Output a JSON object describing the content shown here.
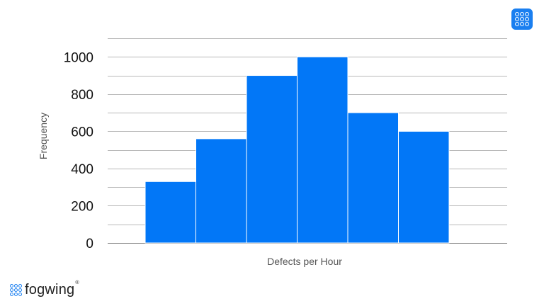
{
  "chart_data": {
    "type": "bar",
    "title": "",
    "xlabel": "Defects per Hour",
    "ylabel": "Frequency",
    "categories": [
      "",
      "",
      "",
      "",
      "",
      ""
    ],
    "values": [
      330,
      560,
      900,
      1000,
      700,
      600
    ],
    "ylim": [
      0,
      1100
    ],
    "yticks": [
      0,
      200,
      400,
      600,
      800,
      1000
    ],
    "grid": true,
    "legend": "none",
    "bar_color": "#0277f7",
    "grid_color": "#b8b8b8"
  },
  "menu_button": {
    "icon": "grid-menu-icon",
    "color": "#1a7ff0"
  },
  "branding": {
    "logo_text": "fogwing",
    "registered_mark": "®",
    "icon": "dot-grid-logo-icon",
    "color": "#1a7ff0"
  }
}
